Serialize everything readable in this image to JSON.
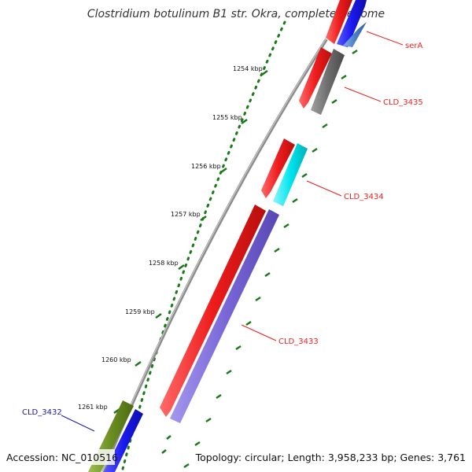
{
  "title": "Clostridium botulinum B1 str. Okra, complete genome",
  "footer": {
    "accession": "Accession: NC_010516",
    "summary": "Topology: circular; Length: 3,958,233 bp; Genes: 3,761"
  },
  "scale": {
    "ticks": [
      "1254 kbp",
      "1255 kbp",
      "1256 kbp",
      "1257 kbp",
      "1258 kbp",
      "1259 kbp",
      "1260 kbp",
      "1261 kbp"
    ]
  },
  "genes": [
    {
      "name": "serA",
      "color": "#ee2222"
    },
    {
      "name": "CLD_3435",
      "color": "#ee2222"
    },
    {
      "name": "CLD_3434",
      "color": "#ee2222"
    },
    {
      "name": "CLD_3433",
      "color": "#ee2222"
    },
    {
      "name": "CLD_3432",
      "color": "#1a1aaa"
    }
  ],
  "colors": {
    "forward_cds": "#ee1c1c",
    "reverse_blue": "#1a1aee",
    "cyan": "#00e5ee",
    "purple": "#7a68d8",
    "gray": "#6e6e6e",
    "olive": "#6b8e23",
    "steel": "#4a7fc8",
    "tick_green": "#1a7a1a",
    "backbone": "#8c8c8c"
  }
}
